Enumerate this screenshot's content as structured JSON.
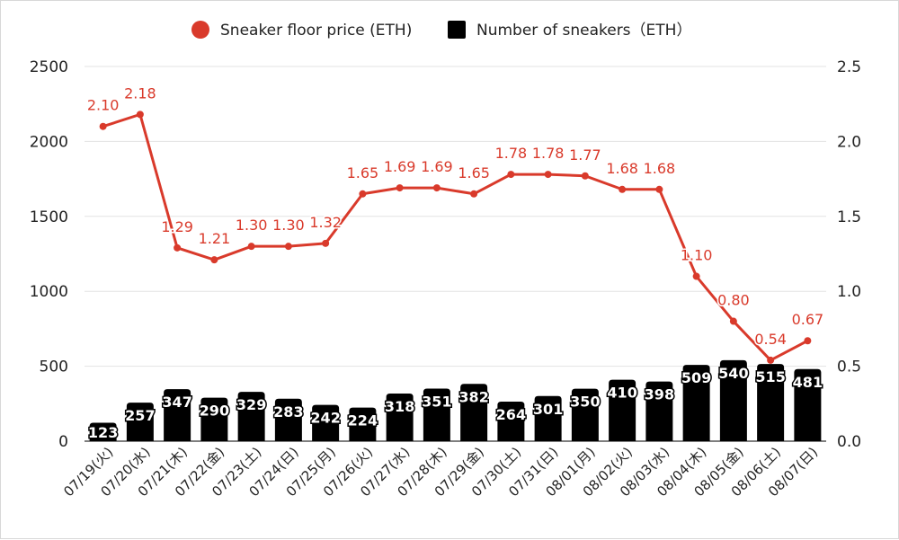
{
  "chart_data": {
    "type": "bar",
    "categories": [
      "07/19(火)",
      "07/20(水)",
      "07/21(木)",
      "07/22(金)",
      "07/23(土)",
      "07/24(日)",
      "07/25(月)",
      "07/26(火)",
      "07/27(水)",
      "07/28(木)",
      "07/29(金)",
      "07/30(土)",
      "07/31(日)",
      "08/01(月)",
      "08/02(火)",
      "08/03(水)",
      "08/04(木)",
      "08/05(金)",
      "08/06(土)",
      "08/07(日)"
    ],
    "series": [
      {
        "name": "Number of sneakers（ETH）",
        "type": "bar",
        "axis": "left",
        "color": "#000000",
        "values": [
          123,
          257,
          347,
          290,
          329,
          283,
          242,
          224,
          318,
          351,
          382,
          264,
          301,
          350,
          410,
          398,
          509,
          540,
          515,
          481
        ],
        "labels": [
          "123",
          "257",
          "347",
          "290",
          "329",
          "283",
          "242",
          "224",
          "318",
          "351",
          "382",
          "264",
          "301",
          "350",
          "410",
          "398",
          "509",
          "540",
          "515",
          "481"
        ]
      },
      {
        "name": "Sneaker floor price (ETH)",
        "type": "line",
        "axis": "right",
        "color": "#d93a2b",
        "values": [
          2.1,
          2.18,
          1.29,
          1.21,
          1.3,
          1.3,
          1.32,
          1.65,
          1.69,
          1.69,
          1.65,
          1.78,
          1.78,
          1.77,
          1.68,
          1.68,
          1.1,
          0.8,
          0.54,
          0.67
        ],
        "labels": [
          "2.10",
          "2.18",
          "1.29",
          "1.21",
          "1.30",
          "1.30",
          "1.32",
          "1.65",
          "1.69",
          "1.69",
          "1.65",
          "1.78",
          "1.78",
          "1.77",
          "1.68",
          "1.68",
          "1.10",
          "0.80",
          "0.54",
          "0.67"
        ]
      }
    ],
    "y_left": {
      "min": 0,
      "max": 2500,
      "ticks": [
        "0",
        "500",
        "1000",
        "1500",
        "2000",
        "2500"
      ]
    },
    "y_right": {
      "min": 0,
      "max": 2.5,
      "ticks": [
        "0.0",
        "0.5",
        "1.0",
        "1.5",
        "2.0",
        "2.5"
      ]
    },
    "legend_position": "top-center",
    "grid": true
  }
}
